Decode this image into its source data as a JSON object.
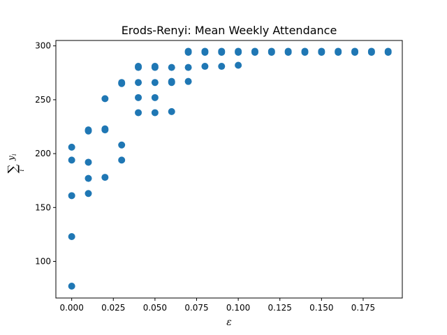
{
  "chart_data": {
    "type": "scatter",
    "title": "Erods-Renyi: Mean Weekly Attendance",
    "xlabel": "ε",
    "ylabel_main": "∑",
    "ylabel_sub": "i",
    "ylabel_sup": "y",
    "ylabel_sup_sub": "i",
    "xlim": [
      -0.0095,
      0.1985
    ],
    "ylim": [
      66,
      305
    ],
    "xticks": [
      0.0,
      0.025,
      0.05,
      0.075,
      0.1,
      0.125,
      0.15,
      0.175
    ],
    "xtick_labels": [
      "0.000",
      "0.025",
      "0.050",
      "0.075",
      "0.100",
      "0.125",
      "0.150",
      "0.175"
    ],
    "yticks": [
      100,
      150,
      200,
      250,
      300
    ],
    "ytick_labels": [
      "100",
      "150",
      "200",
      "250",
      "300"
    ],
    "grid": false,
    "marker_color": "#1f77b4",
    "points": [
      [
        0.0,
        77
      ],
      [
        0.0,
        123
      ],
      [
        0.0,
        161
      ],
      [
        0.0,
        194
      ],
      [
        0.0,
        206
      ],
      [
        0.01,
        163
      ],
      [
        0.01,
        177
      ],
      [
        0.01,
        192
      ],
      [
        0.01,
        221
      ],
      [
        0.01,
        222
      ],
      [
        0.02,
        178
      ],
      [
        0.02,
        222
      ],
      [
        0.02,
        223
      ],
      [
        0.02,
        251
      ],
      [
        0.03,
        194
      ],
      [
        0.03,
        208
      ],
      [
        0.03,
        265
      ],
      [
        0.03,
        266
      ],
      [
        0.04,
        238
      ],
      [
        0.04,
        252
      ],
      [
        0.04,
        266
      ],
      [
        0.04,
        280
      ],
      [
        0.04,
        281
      ],
      [
        0.05,
        238
      ],
      [
        0.05,
        252
      ],
      [
        0.05,
        266
      ],
      [
        0.05,
        280
      ],
      [
        0.05,
        281
      ],
      [
        0.06,
        239
      ],
      [
        0.06,
        266
      ],
      [
        0.06,
        267
      ],
      [
        0.06,
        280
      ],
      [
        0.07,
        267
      ],
      [
        0.07,
        280
      ],
      [
        0.07,
        294
      ],
      [
        0.07,
        295
      ],
      [
        0.08,
        281
      ],
      [
        0.08,
        294
      ],
      [
        0.08,
        295
      ],
      [
        0.09,
        281
      ],
      [
        0.09,
        294
      ],
      [
        0.09,
        295
      ],
      [
        0.1,
        282
      ],
      [
        0.1,
        294
      ],
      [
        0.1,
        295
      ],
      [
        0.11,
        294
      ],
      [
        0.11,
        295
      ],
      [
        0.12,
        294
      ],
      [
        0.12,
        295
      ],
      [
        0.13,
        294
      ],
      [
        0.13,
        295
      ],
      [
        0.14,
        294
      ],
      [
        0.14,
        295
      ],
      [
        0.15,
        294
      ],
      [
        0.15,
        295
      ],
      [
        0.16,
        294
      ],
      [
        0.16,
        295
      ],
      [
        0.17,
        294
      ],
      [
        0.17,
        295
      ],
      [
        0.18,
        294
      ],
      [
        0.18,
        295
      ],
      [
        0.19,
        294
      ],
      [
        0.19,
        295
      ]
    ]
  }
}
